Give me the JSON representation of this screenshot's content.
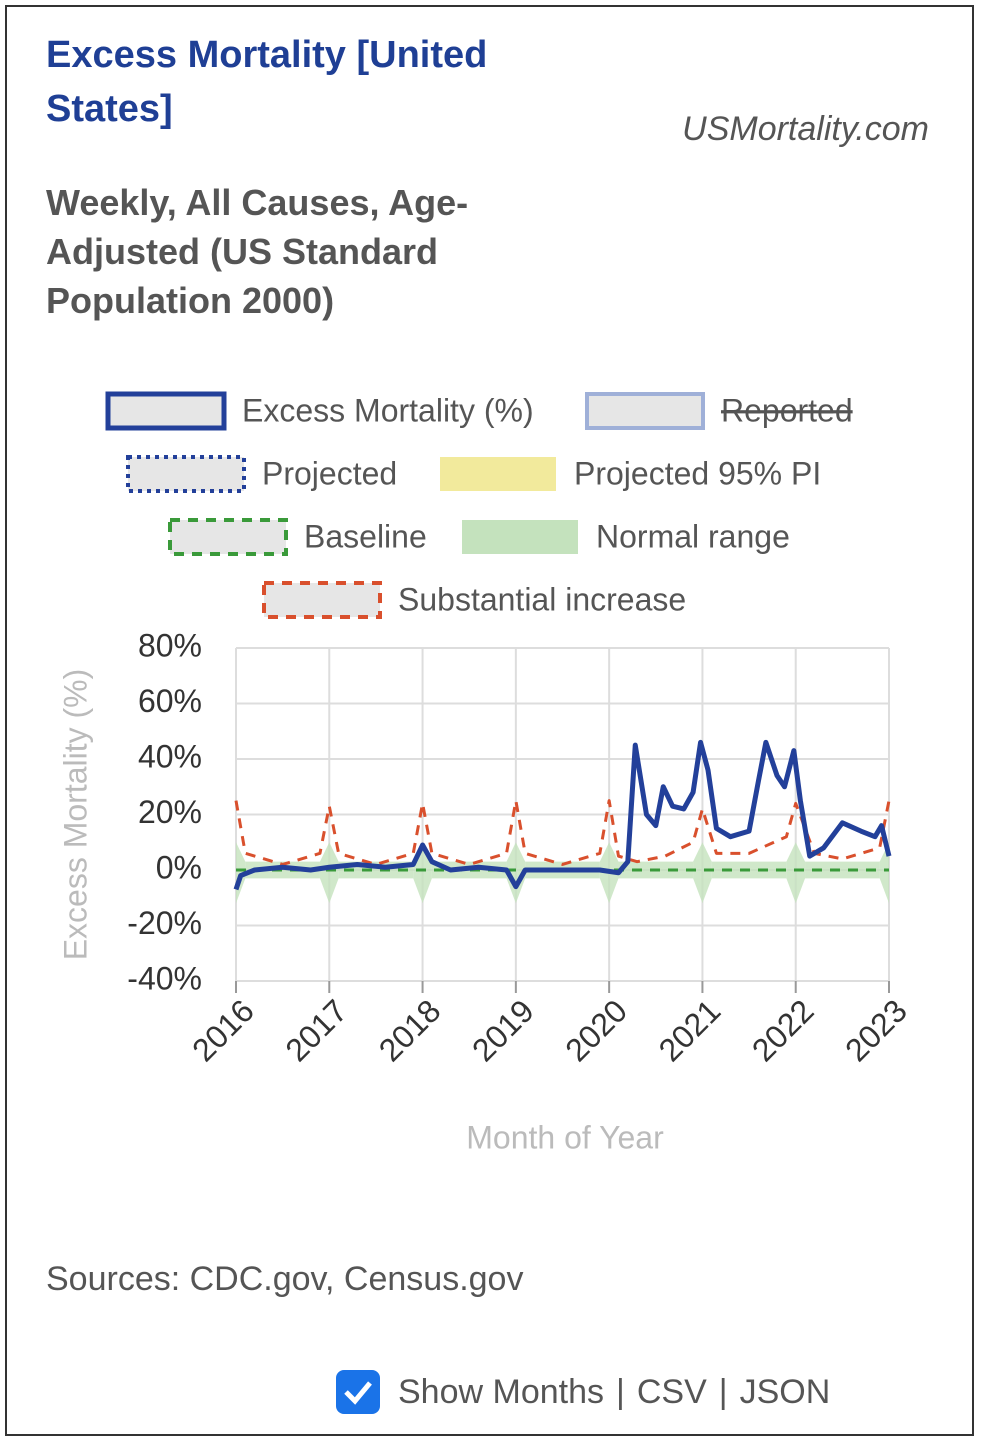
{
  "chart_data": {
    "type": "line",
    "title": "Excess Mortality [United States]",
    "subtitle": "Weekly, All Causes, Age-Adjusted (US Standard Population 2000)",
    "site": "USMortality.com",
    "y_label": "Excess Mortality (%)",
    "x_label": "Month of Year",
    "source": "Sources: CDC.gov, Census.gov",
    "xlim": [
      2016,
      2023
    ],
    "xticks": [
      2016,
      2017,
      2018,
      2019,
      2020,
      2021,
      2022,
      2023
    ],
    "ylim": [
      -40,
      80
    ],
    "yticks": [
      {
        "value": -40,
        "label": "-40%"
      },
      {
        "value": -20,
        "label": "-20%"
      },
      {
        "value": 0,
        "label": "0%"
      },
      {
        "value": 20,
        "label": "20%"
      },
      {
        "value": 40,
        "label": "40%"
      },
      {
        "value": 60,
        "label": "60%"
      },
      {
        "value": 80,
        "label": "80%"
      }
    ],
    "grid": true,
    "series": [
      {
        "name": "Excess Mortality (%)",
        "color": "#23409a",
        "style": "solid",
        "x": [
          2016.0,
          2016.05,
          2016.2,
          2016.5,
          2016.8,
          2017.0,
          2017.3,
          2017.6,
          2017.9,
          2018.0,
          2018.1,
          2018.3,
          2018.6,
          2018.9,
          2019.0,
          2019.1,
          2019.5,
          2019.9,
          2020.1,
          2020.2,
          2020.28,
          2020.4,
          2020.5,
          2020.58,
          2020.68,
          2020.8,
          2020.9,
          2020.98,
          2021.06,
          2021.15,
          2021.3,
          2021.5,
          2021.6,
          2021.68,
          2021.8,
          2021.88,
          2021.98,
          2022.05,
          2022.15,
          2022.3,
          2022.5,
          2022.7,
          2022.85,
          2022.92,
          2023.0
        ],
        "values": [
          -7,
          -2,
          0,
          1,
          0,
          1,
          2,
          1,
          2,
          9,
          3,
          0,
          1,
          0,
          -6,
          0,
          0,
          0,
          -1,
          3,
          45,
          20,
          16,
          30,
          23,
          22,
          28,
          46,
          36,
          15,
          12,
          14,
          32,
          46,
          34,
          30,
          43,
          25,
          5,
          8,
          17,
          14,
          12,
          16,
          5
        ]
      },
      {
        "name": "Reported",
        "color": "#9fb0d8",
        "style": "box",
        "hidden": true,
        "x": [],
        "values": []
      },
      {
        "name": "Projected",
        "color": "#23409a",
        "style": "dotted",
        "x": [],
        "values": []
      },
      {
        "name": "Projected 95% PI",
        "color": "#f2ea9c",
        "style": "fill",
        "x": [],
        "values": []
      },
      {
        "name": "Baseline",
        "color": "#3a9a3a",
        "style": "dashed",
        "x": [
          2016,
          2023
        ],
        "values": [
          0,
          0
        ]
      },
      {
        "name": "Normal range",
        "color": "#c4e2bd",
        "style": "band",
        "x": [
          2016.0,
          2016.1,
          2016.9,
          2017.0,
          2017.1,
          2017.9,
          2018.0,
          2018.1,
          2018.9,
          2019.0,
          2019.1,
          2019.9,
          2020.0,
          2020.1,
          2020.9,
          2021.0,
          2021.1,
          2021.9,
          2022.0,
          2022.1,
          2022.9,
          2023.0
        ],
        "upper": [
          10,
          3,
          3,
          10,
          3,
          3,
          10,
          3,
          3,
          10,
          3,
          3,
          10,
          3,
          3,
          10,
          3,
          3,
          10,
          3,
          3,
          10
        ],
        "lower": [
          -12,
          -3,
          -3,
          -12,
          -3,
          -3,
          -12,
          -3,
          -3,
          -12,
          -3,
          -3,
          -12,
          -3,
          -3,
          -12,
          -3,
          -3,
          -12,
          -3,
          -3,
          -12
        ]
      },
      {
        "name": "Substantial increase",
        "color": "#d9502d",
        "style": "dashed",
        "x": [
          2016.0,
          2016.1,
          2016.5,
          2016.9,
          2017.0,
          2017.1,
          2017.5,
          2017.9,
          2018.0,
          2018.1,
          2018.5,
          2018.9,
          2019.0,
          2019.1,
          2019.5,
          2019.9,
          2020.0,
          2020.1,
          2020.3,
          2020.6,
          2020.9,
          2021.0,
          2021.15,
          2021.5,
          2021.9,
          2022.0,
          2022.2,
          2022.5,
          2022.9,
          2023.0
        ],
        "values": [
          25,
          6,
          2,
          6,
          23,
          6,
          2,
          6,
          24,
          6,
          2,
          6,
          25,
          6,
          2,
          6,
          25,
          5,
          3,
          5,
          10,
          22,
          6,
          6,
          12,
          24,
          6,
          4,
          8,
          25
        ]
      }
    ]
  },
  "footer": {
    "links": [
      "Show Months",
      "CSV",
      "JSON"
    ],
    "separator": "|"
  }
}
